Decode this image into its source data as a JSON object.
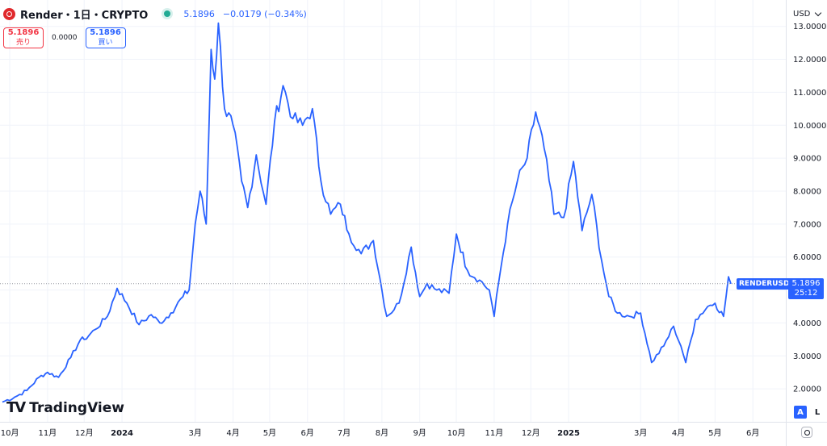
{
  "header": {
    "title": "Render・1日・CRYPTO",
    "last_price": "5.1896",
    "change": "−0.0179 (−0.34%)"
  },
  "trade": {
    "sell_price": "5.1896",
    "sell_label": "売り",
    "spread": "0.0000",
    "buy_price": "5.1896",
    "buy_label": "買い"
  },
  "currency": "USD",
  "branding": "TradingView",
  "price_label": {
    "symbol": "RENDERUSD",
    "value": "5.1896",
    "countdown": "25:12"
  },
  "scale_buttons": {
    "auto": "A",
    "log": "L"
  },
  "colors": {
    "line": "#2962ff",
    "accent": "#2962ff",
    "sell": "#f23645",
    "live_dot": "#22ab94"
  },
  "icons": [
    "render-logo-icon",
    "market-status-icon",
    "chevron-down-icon",
    "tradingview-logo-icon",
    "settings-icon"
  ],
  "chart_data": {
    "type": "line",
    "series": [
      {
        "x": [
          "2023-09-25",
          "2023-10-05",
          "2023-10-15",
          "2023-10-25",
          "2023-11-01",
          "2023-11-10",
          "2023-11-20",
          "2023-11-28",
          "2023-12-01",
          "2023-12-10",
          "2023-12-20",
          "2023-12-28",
          "2024-01-05",
          "2024-01-15",
          "2024-01-25",
          "2024-02-01",
          "2024-02-10",
          "2024-02-20",
          "2024-02-25",
          "2024-03-01",
          "2024-03-05",
          "2024-03-10",
          "2024-03-14",
          "2024-03-17",
          "2024-03-20",
          "2024-03-25",
          "2024-04-01",
          "2024-04-08",
          "2024-04-13",
          "2024-04-20",
          "2024-04-28",
          "2024-05-05",
          "2024-05-12",
          "2024-05-20",
          "2024-05-28",
          "2024-06-05",
          "2024-06-12",
          "2024-06-20",
          "2024-06-28",
          "2024-07-05",
          "2024-07-15",
          "2024-07-25",
          "2024-08-01",
          "2024-08-05",
          "2024-08-15",
          "2024-08-25",
          "2024-09-01",
          "2024-09-07",
          "2024-09-15",
          "2024-09-25",
          "2024-10-01",
          "2024-10-10",
          "2024-10-20",
          "2024-10-28",
          "2024-11-01",
          "2024-11-05",
          "2024-11-12",
          "2024-11-20",
          "2024-11-28",
          "2024-12-05",
          "2024-12-12",
          "2024-12-20",
          "2024-12-28",
          "2025-01-05",
          "2025-01-12",
          "2025-01-20",
          "2025-01-28",
          "2025-02-03",
          "2025-02-10",
          "2025-02-20",
          "2025-03-01",
          "2025-03-10",
          "2025-03-20",
          "2025-03-28",
          "2025-04-03",
          "2025-04-07",
          "2025-04-15",
          "2025-04-25",
          "2025-05-01",
          "2025-05-08",
          "2025-05-12",
          "2025-05-14"
        ],
        "values": [
          1.6,
          1.75,
          1.95,
          2.35,
          2.5,
          2.35,
          2.95,
          3.5,
          3.5,
          3.8,
          4.2,
          5.05,
          4.6,
          3.95,
          4.25,
          4.0,
          4.3,
          4.8,
          5.0,
          7.0,
          8.0,
          7.0,
          12.3,
          11.4,
          13.1,
          10.5,
          10.0,
          8.3,
          7.5,
          9.1,
          7.6,
          10.1,
          11.2,
          10.2,
          10.0,
          10.5,
          8.3,
          7.3,
          7.6,
          6.7,
          6.1,
          6.5,
          5.0,
          4.2,
          4.6,
          6.3,
          4.8,
          5.2,
          5.0,
          4.9,
          6.7,
          5.6,
          5.3,
          5.0,
          4.2,
          5.3,
          7.0,
          8.3,
          9.0,
          10.4,
          9.3,
          7.3,
          7.2,
          8.9,
          6.8,
          7.9,
          5.9,
          4.8,
          4.3,
          4.2,
          4.3,
          2.8,
          3.3,
          3.9,
          3.3,
          2.8,
          4.1,
          4.5,
          4.6,
          4.2,
          5.4,
          5.19
        ]
      }
    ],
    "y_ticks": [
      "2.0000",
      "3.0000",
      "4.0000",
      "5.0000",
      "6.0000",
      "7.0000",
      "8.0000",
      "9.0000",
      "10.0000",
      "11.0000",
      "12.0000",
      "13.0000"
    ],
    "x_ticks": [
      "10月",
      "11月",
      "12月",
      "2024",
      "3月",
      "4月",
      "5月",
      "6月",
      "7月",
      "8月",
      "9月",
      "10月",
      "11月",
      "12月",
      "2025",
      "3月",
      "4月",
      "5月",
      "6月"
    ],
    "ylim": [
      1.0,
      13.8
    ],
    "y_scale": "linear",
    "grid": true
  }
}
